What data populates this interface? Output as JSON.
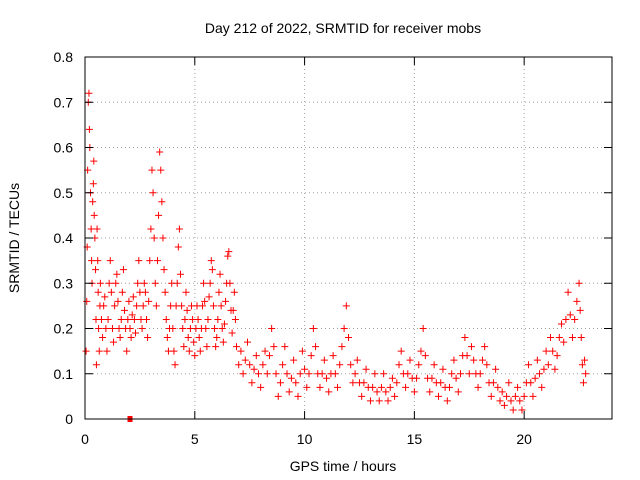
{
  "chart_data": {
    "type": "scatter",
    "title": "Day 212 of 2022, SRMTID for receiver mobs",
    "xlabel": "GPS time / hours",
    "ylabel": "SRMTID / TECUs",
    "xlim": [
      0,
      24
    ],
    "ylim": [
      0,
      0.8
    ],
    "x_ticks": [
      0,
      5,
      10,
      15,
      20
    ],
    "y_ticks": [
      0,
      0.1,
      0.2,
      0.3,
      0.4,
      0.5,
      0.6,
      0.7,
      0.8
    ],
    "x_tick_labels": [
      "0",
      "5",
      "10",
      "15",
      "20"
    ],
    "y_tick_labels": [
      "0",
      "0.1",
      "0.2",
      "0.3",
      "0.4",
      "0.5",
      "0.6",
      "0.7",
      "0.8"
    ],
    "grid": true,
    "marker": "plus",
    "series_color": "#ff0000",
    "series": [
      {
        "name": "mobs",
        "points": [
          [
            0.05,
            0.15
          ],
          [
            0.08,
            0.26
          ],
          [
            0.1,
            0.38
          ],
          [
            0.12,
            0.55
          ],
          [
            0.15,
            0.7
          ],
          [
            0.18,
            0.72
          ],
          [
            0.2,
            0.64
          ],
          [
            0.22,
            0.6
          ],
          [
            0.25,
            0.5
          ],
          [
            0.28,
            0.42
          ],
          [
            0.3,
            0.35
          ],
          [
            0.32,
            0.3
          ],
          [
            0.35,
            0.48
          ],
          [
            0.38,
            0.52
          ],
          [
            0.4,
            0.57
          ],
          [
            0.42,
            0.45
          ],
          [
            0.45,
            0.4
          ],
          [
            0.48,
            0.33
          ],
          [
            0.5,
            0.22
          ],
          [
            0.52,
            0.12
          ],
          [
            0.55,
            0.42
          ],
          [
            0.58,
            0.35
          ],
          [
            0.6,
            0.28
          ],
          [
            0.62,
            0.2
          ],
          [
            0.65,
            0.15
          ],
          [
            0.68,
            0.25
          ],
          [
            0.7,
            0.3
          ],
          [
            0.75,
            0.22
          ],
          [
            0.8,
            0.18
          ],
          [
            0.85,
            0.25
          ],
          [
            0.9,
            0.27
          ],
          [
            0.95,
            0.2
          ],
          [
            1.0,
            0.15
          ],
          [
            1.05,
            0.22
          ],
          [
            1.1,
            0.3
          ],
          [
            1.15,
            0.35
          ],
          [
            1.2,
            0.28
          ],
          [
            1.25,
            0.2
          ],
          [
            1.3,
            0.17
          ],
          [
            1.35,
            0.25
          ],
          [
            1.4,
            0.3
          ],
          [
            1.45,
            0.32
          ],
          [
            1.5,
            0.26
          ],
          [
            1.55,
            0.2
          ],
          [
            1.6,
            0.18
          ],
          [
            1.65,
            0.22
          ],
          [
            1.7,
            0.28
          ],
          [
            1.75,
            0.33
          ],
          [
            1.8,
            0.24
          ],
          [
            1.85,
            0.2
          ],
          [
            1.9,
            0.15
          ],
          [
            1.95,
            0.22
          ],
          [
            2.0,
            0.26
          ],
          [
            2.05,
            0.2
          ],
          [
            2.1,
            0.18
          ],
          [
            2.15,
            0.23
          ],
          [
            2.2,
            0.27
          ],
          [
            2.25,
            0.22
          ],
          [
            2.3,
            0.19
          ],
          [
            2.35,
            0.25
          ],
          [
            2.4,
            0.3
          ],
          [
            2.45,
            0.35
          ],
          [
            2.5,
            0.28
          ],
          [
            2.55,
            0.22
          ],
          [
            2.6,
            0.2
          ],
          [
            2.65,
            0.25
          ],
          [
            2.7,
            0.3
          ],
          [
            2.75,
            0.28
          ],
          [
            2.8,
            0.22
          ],
          [
            2.85,
            0.18
          ],
          [
            2.9,
            0.26
          ],
          [
            2.95,
            0.35
          ],
          [
            3.0,
            0.42
          ],
          [
            3.05,
            0.55
          ],
          [
            3.1,
            0.5
          ],
          [
            3.15,
            0.4
          ],
          [
            3.2,
            0.3
          ],
          [
            3.25,
            0.25
          ],
          [
            3.3,
            0.35
          ],
          [
            3.35,
            0.45
          ],
          [
            3.4,
            0.59
          ],
          [
            3.45,
            0.55
          ],
          [
            3.5,
            0.48
          ],
          [
            3.55,
            0.4
          ],
          [
            3.6,
            0.33
          ],
          [
            3.65,
            0.28
          ],
          [
            3.7,
            0.22
          ],
          [
            3.75,
            0.18
          ],
          [
            3.8,
            0.15
          ],
          [
            3.85,
            0.2
          ],
          [
            3.9,
            0.25
          ],
          [
            3.95,
            0.3
          ],
          [
            4.0,
            0.2
          ],
          [
            4.05,
            0.15
          ],
          [
            4.1,
            0.12
          ],
          [
            4.15,
            0.25
          ],
          [
            4.2,
            0.3
          ],
          [
            4.25,
            0.38
          ],
          [
            4.3,
            0.42
          ],
          [
            4.35,
            0.32
          ],
          [
            4.4,
            0.25
          ],
          [
            4.45,
            0.2
          ],
          [
            4.5,
            0.16
          ],
          [
            4.55,
            0.22
          ],
          [
            4.6,
            0.28
          ],
          [
            4.65,
            0.24
          ],
          [
            4.7,
            0.18
          ],
          [
            4.75,
            0.15
          ],
          [
            4.8,
            0.2
          ],
          [
            4.85,
            0.25
          ],
          [
            4.9,
            0.22
          ],
          [
            4.95,
            0.17
          ],
          [
            5.0,
            0.14
          ],
          [
            5.05,
            0.2
          ],
          [
            5.1,
            0.25
          ],
          [
            5.15,
            0.22
          ],
          [
            5.2,
            0.18
          ],
          [
            5.25,
            0.15
          ],
          [
            5.3,
            0.2
          ],
          [
            5.35,
            0.25
          ],
          [
            5.4,
            0.3
          ],
          [
            5.45,
            0.26
          ],
          [
            5.5,
            0.2
          ],
          [
            5.55,
            0.16
          ],
          [
            5.6,
            0.22
          ],
          [
            5.65,
            0.27
          ],
          [
            5.7,
            0.3
          ],
          [
            5.75,
            0.35
          ],
          [
            5.8,
            0.33
          ],
          [
            5.85,
            0.25
          ],
          [
            5.9,
            0.2
          ],
          [
            5.95,
            0.16
          ],
          [
            6.0,
            0.18
          ],
          [
            6.05,
            0.22
          ],
          [
            6.1,
            0.28
          ],
          [
            6.15,
            0.32
          ],
          [
            6.2,
            0.25
          ],
          [
            6.25,
            0.2
          ],
          [
            6.3,
            0.17
          ],
          [
            6.35,
            0.21
          ],
          [
            6.4,
            0.26
          ],
          [
            6.45,
            0.3
          ],
          [
            6.5,
            0.36
          ],
          [
            6.55,
            0.37
          ],
          [
            6.6,
            0.3
          ],
          [
            6.65,
            0.24
          ],
          [
            6.7,
            0.19
          ],
          [
            6.75,
            0.24
          ],
          [
            6.8,
            0.28
          ],
          [
            6.85,
            0.22
          ],
          [
            6.9,
            0.16
          ],
          [
            7.0,
            0.12
          ],
          [
            7.1,
            0.15
          ],
          [
            7.2,
            0.1
          ],
          [
            7.3,
            0.13
          ],
          [
            7.4,
            0.17
          ],
          [
            7.5,
            0.12
          ],
          [
            7.6,
            0.08
          ],
          [
            7.7,
            0.11
          ],
          [
            7.8,
            0.14
          ],
          [
            7.9,
            0.1
          ],
          [
            8.0,
            0.07
          ],
          [
            8.1,
            0.12
          ],
          [
            8.2,
            0.15
          ],
          [
            8.3,
            0.1
          ],
          [
            8.4,
            0.14
          ],
          [
            8.5,
            0.2
          ],
          [
            8.6,
            0.16
          ],
          [
            8.7,
            0.1
          ],
          [
            8.8,
            0.05
          ],
          [
            8.9,
            0.08
          ],
          [
            9.0,
            0.12
          ],
          [
            9.1,
            0.16
          ],
          [
            9.2,
            0.1
          ],
          [
            9.3,
            0.06
          ],
          [
            9.4,
            0.09
          ],
          [
            9.5,
            0.13
          ],
          [
            9.6,
            0.08
          ],
          [
            9.7,
            0.05
          ],
          [
            9.8,
            0.1
          ],
          [
            9.9,
            0.15
          ],
          [
            10.0,
            0.11
          ],
          [
            10.1,
            0.07
          ],
          [
            10.2,
            0.1
          ],
          [
            10.3,
            0.14
          ],
          [
            10.4,
            0.2
          ],
          [
            10.5,
            0.16
          ],
          [
            10.6,
            0.1
          ],
          [
            10.7,
            0.07
          ],
          [
            10.8,
            0.1
          ],
          [
            10.9,
            0.13
          ],
          [
            11.0,
            0.09
          ],
          [
            11.1,
            0.06
          ],
          [
            11.2,
            0.1
          ],
          [
            11.3,
            0.14
          ],
          [
            11.4,
            0.1
          ],
          [
            11.5,
            0.07
          ],
          [
            11.6,
            0.12
          ],
          [
            11.7,
            0.16
          ],
          [
            11.8,
            0.2
          ],
          [
            11.9,
            0.25
          ],
          [
            12.0,
            0.18
          ],
          [
            12.1,
            0.12
          ],
          [
            12.2,
            0.08
          ],
          [
            12.3,
            0.1
          ],
          [
            12.4,
            0.13
          ],
          [
            12.5,
            0.08
          ],
          [
            12.6,
            0.05
          ],
          [
            12.7,
            0.08
          ],
          [
            12.8,
            0.11
          ],
          [
            12.9,
            0.07
          ],
          [
            13.0,
            0.04
          ],
          [
            13.1,
            0.07
          ],
          [
            13.2,
            0.1
          ],
          [
            13.3,
            0.06
          ],
          [
            13.4,
            0.04
          ],
          [
            13.5,
            0.07
          ],
          [
            13.6,
            0.1
          ],
          [
            13.7,
            0.06
          ],
          [
            13.8,
            0.04
          ],
          [
            13.9,
            0.07
          ],
          [
            14.0,
            0.09
          ],
          [
            14.1,
            0.05
          ],
          [
            14.2,
            0.08
          ],
          [
            14.3,
            0.12
          ],
          [
            14.4,
            0.15
          ],
          [
            14.5,
            0.1
          ],
          [
            14.6,
            0.07
          ],
          [
            14.7,
            0.1
          ],
          [
            14.8,
            0.13
          ],
          [
            14.9,
            0.09
          ],
          [
            15.0,
            0.06
          ],
          [
            15.1,
            0.09
          ],
          [
            15.2,
            0.12
          ],
          [
            15.3,
            0.15
          ],
          [
            15.4,
            0.2
          ],
          [
            15.5,
            0.14
          ],
          [
            15.6,
            0.09
          ],
          [
            15.7,
            0.06
          ],
          [
            15.8,
            0.09
          ],
          [
            15.9,
            0.12
          ],
          [
            16.0,
            0.08
          ],
          [
            16.1,
            0.05
          ],
          [
            16.2,
            0.08
          ],
          [
            16.3,
            0.11
          ],
          [
            16.4,
            0.07
          ],
          [
            16.5,
            0.04
          ],
          [
            16.6,
            0.07
          ],
          [
            16.7,
            0.1
          ],
          [
            16.8,
            0.13
          ],
          [
            16.9,
            0.09
          ],
          [
            17.0,
            0.06
          ],
          [
            17.1,
            0.1
          ],
          [
            17.2,
            0.14
          ],
          [
            17.3,
            0.18
          ],
          [
            17.4,
            0.14
          ],
          [
            17.5,
            0.1
          ],
          [
            17.6,
            0.16
          ],
          [
            17.7,
            0.13
          ],
          [
            17.8,
            0.1
          ],
          [
            17.9,
            0.07
          ],
          [
            18.0,
            0.1
          ],
          [
            18.1,
            0.13
          ],
          [
            18.2,
            0.16
          ],
          [
            18.3,
            0.12
          ],
          [
            18.4,
            0.08
          ],
          [
            18.5,
            0.05
          ],
          [
            18.6,
            0.08
          ],
          [
            18.7,
            0.11
          ],
          [
            18.8,
            0.07
          ],
          [
            18.9,
            0.04
          ],
          [
            19.0,
            0.06
          ],
          [
            19.1,
            0.03
          ],
          [
            19.2,
            0.05
          ],
          [
            19.3,
            0.08
          ],
          [
            19.4,
            0.04
          ],
          [
            19.5,
            0.02
          ],
          [
            19.6,
            0.05
          ],
          [
            19.7,
            0.07
          ],
          [
            19.8,
            0.04
          ],
          [
            19.9,
            0.02
          ],
          [
            20.0,
            0.05
          ],
          [
            20.1,
            0.08
          ],
          [
            20.2,
            0.12
          ],
          [
            20.3,
            0.08
          ],
          [
            20.4,
            0.05
          ],
          [
            20.5,
            0.09
          ],
          [
            20.6,
            0.13
          ],
          [
            20.7,
            0.1
          ],
          [
            20.8,
            0.07
          ],
          [
            20.9,
            0.11
          ],
          [
            21.0,
            0.15
          ],
          [
            21.1,
            0.12
          ],
          [
            21.2,
            0.18
          ],
          [
            21.3,
            0.15
          ],
          [
            21.4,
            0.11
          ],
          [
            21.5,
            0.14
          ],
          [
            21.6,
            0.18
          ],
          [
            21.7,
            0.21
          ],
          [
            21.8,
            0.17
          ],
          [
            21.9,
            0.22
          ],
          [
            22.0,
            0.28
          ],
          [
            22.1,
            0.23
          ],
          [
            22.2,
            0.18
          ],
          [
            22.3,
            0.22
          ],
          [
            22.4,
            0.26
          ],
          [
            22.5,
            0.3
          ],
          [
            22.55,
            0.24
          ],
          [
            22.6,
            0.18
          ],
          [
            22.65,
            0.12
          ],
          [
            22.7,
            0.08
          ],
          [
            22.75,
            0.13
          ],
          [
            22.8,
            0.1
          ]
        ]
      }
    ],
    "outlier": [
      2.05,
      0.0
    ]
  }
}
